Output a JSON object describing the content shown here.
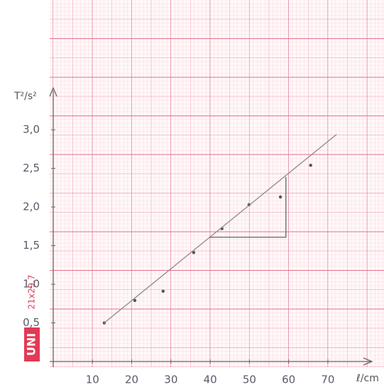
{
  "chart_data": {
    "type": "scatter",
    "x_label": "ℓ/cm",
    "y_label": "T²/s²",
    "stamp": "UNI",
    "paper_format": "21x29.7",
    "xlim": [
      0,
      84.3
    ],
    "ylim": [
      0,
      4.68
    ],
    "xticks": [
      10,
      20,
      30,
      40,
      50,
      60,
      70
    ],
    "yticks": [
      {
        "value": 0.5,
        "label": "0,5"
      },
      {
        "value": 1.0,
        "label": "1,0"
      },
      {
        "value": 1.5,
        "label": "1,5"
      },
      {
        "value": 2.0,
        "label": "2,0"
      },
      {
        "value": 2.5,
        "label": "2,5"
      },
      {
        "value": 3.0,
        "label": "3,0"
      }
    ],
    "series": [
      {
        "style": "points",
        "color": "#555555",
        "x": [
          13.0,
          20.8,
          28.0,
          35.8,
          43.0,
          49.9,
          57.9,
          65.6
        ],
        "values": [
          0.5,
          0.79,
          0.91,
          1.41,
          1.72,
          2.03,
          2.13,
          2.54
        ]
      },
      {
        "style": "line",
        "color": "#8a8a8a",
        "x": [
          13.0,
          72.2
        ],
        "values": [
          0.5,
          2.94
        ]
      },
      {
        "style": "line",
        "color": "#666666",
        "x": [
          39.8,
          59.3,
          59.3
        ],
        "values": [
          1.61,
          1.61,
          2.39
        ]
      }
    ]
  }
}
